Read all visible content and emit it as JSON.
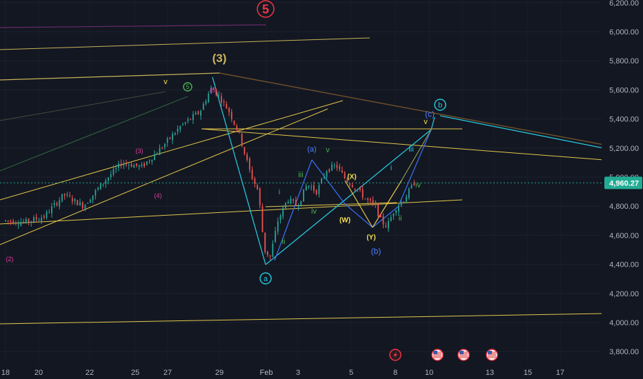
{
  "chart_data": {
    "type": "candlestick",
    "price_axis": {
      "ticks": [
        3800,
        4000,
        4200,
        4400,
        4600,
        4800,
        5000,
        5200,
        5400,
        5600,
        5800,
        6000,
        6200
      ],
      "tick_labels": [
        "3,800.00",
        "4,000.00",
        "4,200.00",
        "4,400.00",
        "4,600.00",
        "4,800.00",
        "5,000.00",
        "5,200.00",
        "5,400.00",
        "5,600.00",
        "5,800.00",
        "6,000.00",
        "6,200.00"
      ],
      "range": [
        3750,
        6230
      ],
      "current_price": 4960.27,
      "current_price_label": "4,960.27",
      "current_price_color": "#22ab94"
    },
    "time_axis": {
      "labels": [
        "18",
        "20",
        "22",
        "25",
        "27",
        "29",
        "Feb",
        "3",
        "5",
        "8",
        "10",
        "13",
        "15",
        "17"
      ]
    },
    "candle_path": [
      [
        18,
        4700
      ],
      [
        19,
        4690
      ],
      [
        20,
        4730
      ],
      [
        21,
        4880
      ],
      [
        22,
        4800
      ],
      [
        23,
        4960
      ],
      [
        24,
        5100
      ],
      [
        25,
        5070
      ],
      [
        26,
        5200
      ],
      [
        27,
        5350
      ],
      [
        28,
        5450
      ],
      [
        28.6,
        5620
      ],
      [
        29,
        5550
      ],
      [
        29.5,
        5450
      ],
      [
        30,
        5300
      ],
      [
        30.6,
        5020
      ],
      [
        31,
        4900
      ],
      [
        31.3,
        4500
      ],
      [
        31.6,
        4450
      ],
      [
        32,
        4700
      ],
      [
        32.5,
        4850
      ],
      [
        33,
        4800
      ],
      [
        33.5,
        4950
      ],
      [
        34,
        4900
      ],
      [
        34.5,
        5050
      ],
      [
        35,
        5080
      ],
      [
        35.5,
        4980
      ],
      [
        36,
        4930
      ],
      [
        36.5,
        4850
      ],
      [
        37,
        4800
      ],
      [
        37.3,
        4700
      ],
      [
        37.6,
        4660
      ],
      [
        38,
        4780
      ],
      [
        38.5,
        4850
      ],
      [
        39,
        4960
      ]
    ],
    "wave_labels": [
      {
        "text": "5",
        "color": "#f23645"
      },
      {
        "text": "(3)",
        "color": "#c9b458"
      },
      {
        "text": "v",
        "color": "#f5e050"
      },
      {
        "text": "5",
        "color": "#4caf50"
      },
      {
        "text": "(5",
        "color": "#e040a0"
      },
      {
        "text": "(3)",
        "color": "#e040a0"
      },
      {
        "text": "(4)",
        "color": "#e040a0"
      },
      {
        "text": "(2)",
        "color": "#e040a0"
      },
      {
        "text": "(a)",
        "color": "#4f7fff"
      },
      {
        "text": "v",
        "color": "#4caf50"
      },
      {
        "text": "iii",
        "color": "#4caf50"
      },
      {
        "text": "i",
        "color": "#4caf50"
      },
      {
        "text": "iv",
        "color": "#4caf50"
      },
      {
        "text": "ii",
        "color": "#4caf50"
      },
      {
        "text": "(X)",
        "color": "#f5e050"
      },
      {
        "text": "(W)",
        "color": "#f5e050"
      },
      {
        "text": "(Y)",
        "color": "#f5e050"
      },
      {
        "text": "(b)",
        "color": "#4f7fff"
      },
      {
        "text": "a",
        "color": "#26c6da"
      },
      {
        "text": "b",
        "color": "#26c6da"
      },
      {
        "text": "(c)",
        "color": "#4f7fff"
      },
      {
        "text": "v",
        "color": "#f5e050"
      },
      {
        "text": "iii",
        "color": "#26c6da"
      },
      {
        "text": "i",
        "color": "#26c6da"
      },
      {
        "text": "iv",
        "color": "#4caf50"
      },
      {
        "text": "ii",
        "color": "#4caf50"
      }
    ],
    "event_icons": [
      "lightning-icon",
      "us-flag-icon",
      "us-flag-icon",
      "us-flag-icon"
    ],
    "colors": {
      "up": "#26a69a",
      "down": "#ef5350",
      "background": "#131722",
      "grid": "#1f2330"
    }
  }
}
